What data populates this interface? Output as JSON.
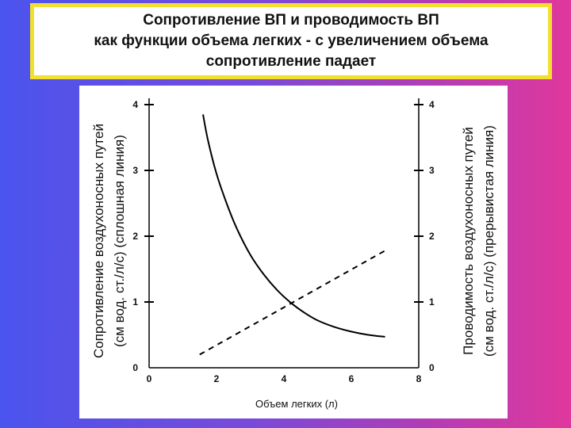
{
  "title": {
    "line1": "Сопротивление ВП и проводимость ВП",
    "line2": "как функции объема легких  - с увеличением объема",
    "line3": "сопротивление падает"
  },
  "chart_data": {
    "type": "line",
    "xlabel": "Объем легких (л)",
    "ylabel_left": [
      "Сопротивление воздухоносных путей",
      "(см вод. ст./л/с) (сплошная линия)"
    ],
    "ylabel_right": [
      "Проводимость воздухоносных путей",
      "(см вод. ст./л/с) (прерывистая линия)"
    ],
    "xlim": [
      0,
      8
    ],
    "ylim": [
      0,
      4
    ],
    "x_ticks": [
      "0",
      "2",
      "4",
      "6",
      "8"
    ],
    "y_ticks_left": [
      "0",
      "1",
      "2",
      "3",
      "4"
    ],
    "y_ticks_right": [
      "0",
      "1",
      "2",
      "3",
      "4"
    ],
    "grid": false,
    "series": [
      {
        "style": "solid",
        "color": "#000000",
        "x": [
          1.6,
          1.75,
          2.0,
          2.3,
          2.6,
          3.0,
          3.4,
          3.8,
          4.2,
          4.6,
          5.0,
          5.5,
          6.0,
          6.5,
          7.0
        ],
        "y": [
          3.85,
          3.45,
          2.95,
          2.5,
          2.12,
          1.72,
          1.42,
          1.18,
          0.99,
          0.84,
          0.72,
          0.62,
          0.55,
          0.5,
          0.47
        ]
      },
      {
        "style": "dashed",
        "color": "#000000",
        "x": [
          1.5,
          7.0
        ],
        "y": [
          0.2,
          1.78
        ]
      }
    ]
  }
}
